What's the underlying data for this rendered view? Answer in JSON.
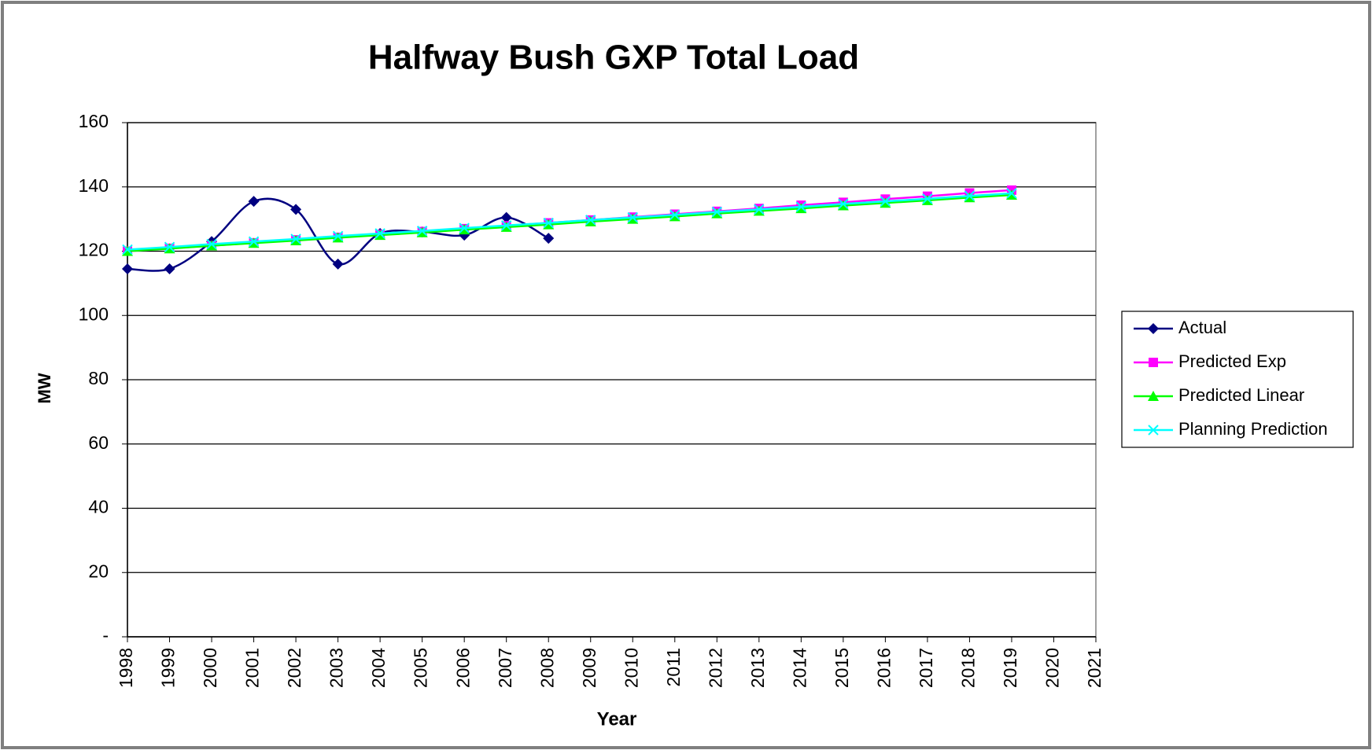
{
  "chart_data": {
    "type": "line",
    "title": "Halfway Bush GXP  Total Load",
    "xlabel": "Year",
    "ylabel": "MW",
    "x": [
      1998,
      1999,
      2000,
      2001,
      2002,
      2003,
      2004,
      2005,
      2006,
      2007,
      2008,
      2009,
      2010,
      2011,
      2012,
      2013,
      2014,
      2015,
      2016,
      2017,
      2018,
      2019
    ],
    "xlim": [
      1998,
      2021
    ],
    "xticks": [
      1998,
      1999,
      2000,
      2001,
      2002,
      2003,
      2004,
      2005,
      2006,
      2007,
      2008,
      2009,
      2010,
      2011,
      2012,
      2013,
      2014,
      2015,
      2016,
      2017,
      2018,
      2019,
      2020,
      2021
    ],
    "ylim": [
      0,
      160
    ],
    "yticks": [
      {
        "value": 0,
        "label": "-"
      },
      20,
      40,
      60,
      80,
      100,
      120,
      140,
      160
    ],
    "grid": true,
    "legend": "right",
    "smooth_series": [
      "Actual"
    ],
    "series": [
      {
        "name": "Actual",
        "color": "#000080",
        "marker": "diamond",
        "values": [
          114.5,
          114.5,
          123,
          135.5,
          133,
          116,
          125.5,
          126,
          125,
          130.5,
          124,
          null,
          null,
          null,
          null,
          null,
          null,
          null,
          null,
          null,
          null,
          null
        ]
      },
      {
        "name": "Predicted Exp",
        "color": "#ff00ff",
        "marker": "square",
        "values": [
          120,
          120.9,
          121.7,
          122.6,
          123.5,
          124.3,
          125.2,
          126.1,
          127,
          127.9,
          128.8,
          129.7,
          130.6,
          131.5,
          132.4,
          133.3,
          134.3,
          135.2,
          136.2,
          137.1,
          138.1,
          139
        ]
      },
      {
        "name": "Predicted Linear",
        "color": "#00ff00",
        "marker": "triangle",
        "values": [
          120,
          120.8,
          121.7,
          122.5,
          123.3,
          124.2,
          125,
          125.8,
          126.7,
          127.5,
          128.3,
          129.2,
          130,
          130.8,
          131.7,
          132.5,
          133.3,
          134.2,
          135,
          135.8,
          136.7,
          137.5
        ]
      },
      {
        "name": "Planning Prediction",
        "color": "#00ffff",
        "marker": "x",
        "values": [
          120.5,
          121.3,
          122.2,
          123,
          123.8,
          124.7,
          125.5,
          126.3,
          127.2,
          128,
          128.8,
          129.7,
          130.5,
          131.3,
          132.2,
          133,
          133.8,
          134.7,
          135.5,
          136.3,
          137.2,
          138
        ]
      }
    ]
  }
}
